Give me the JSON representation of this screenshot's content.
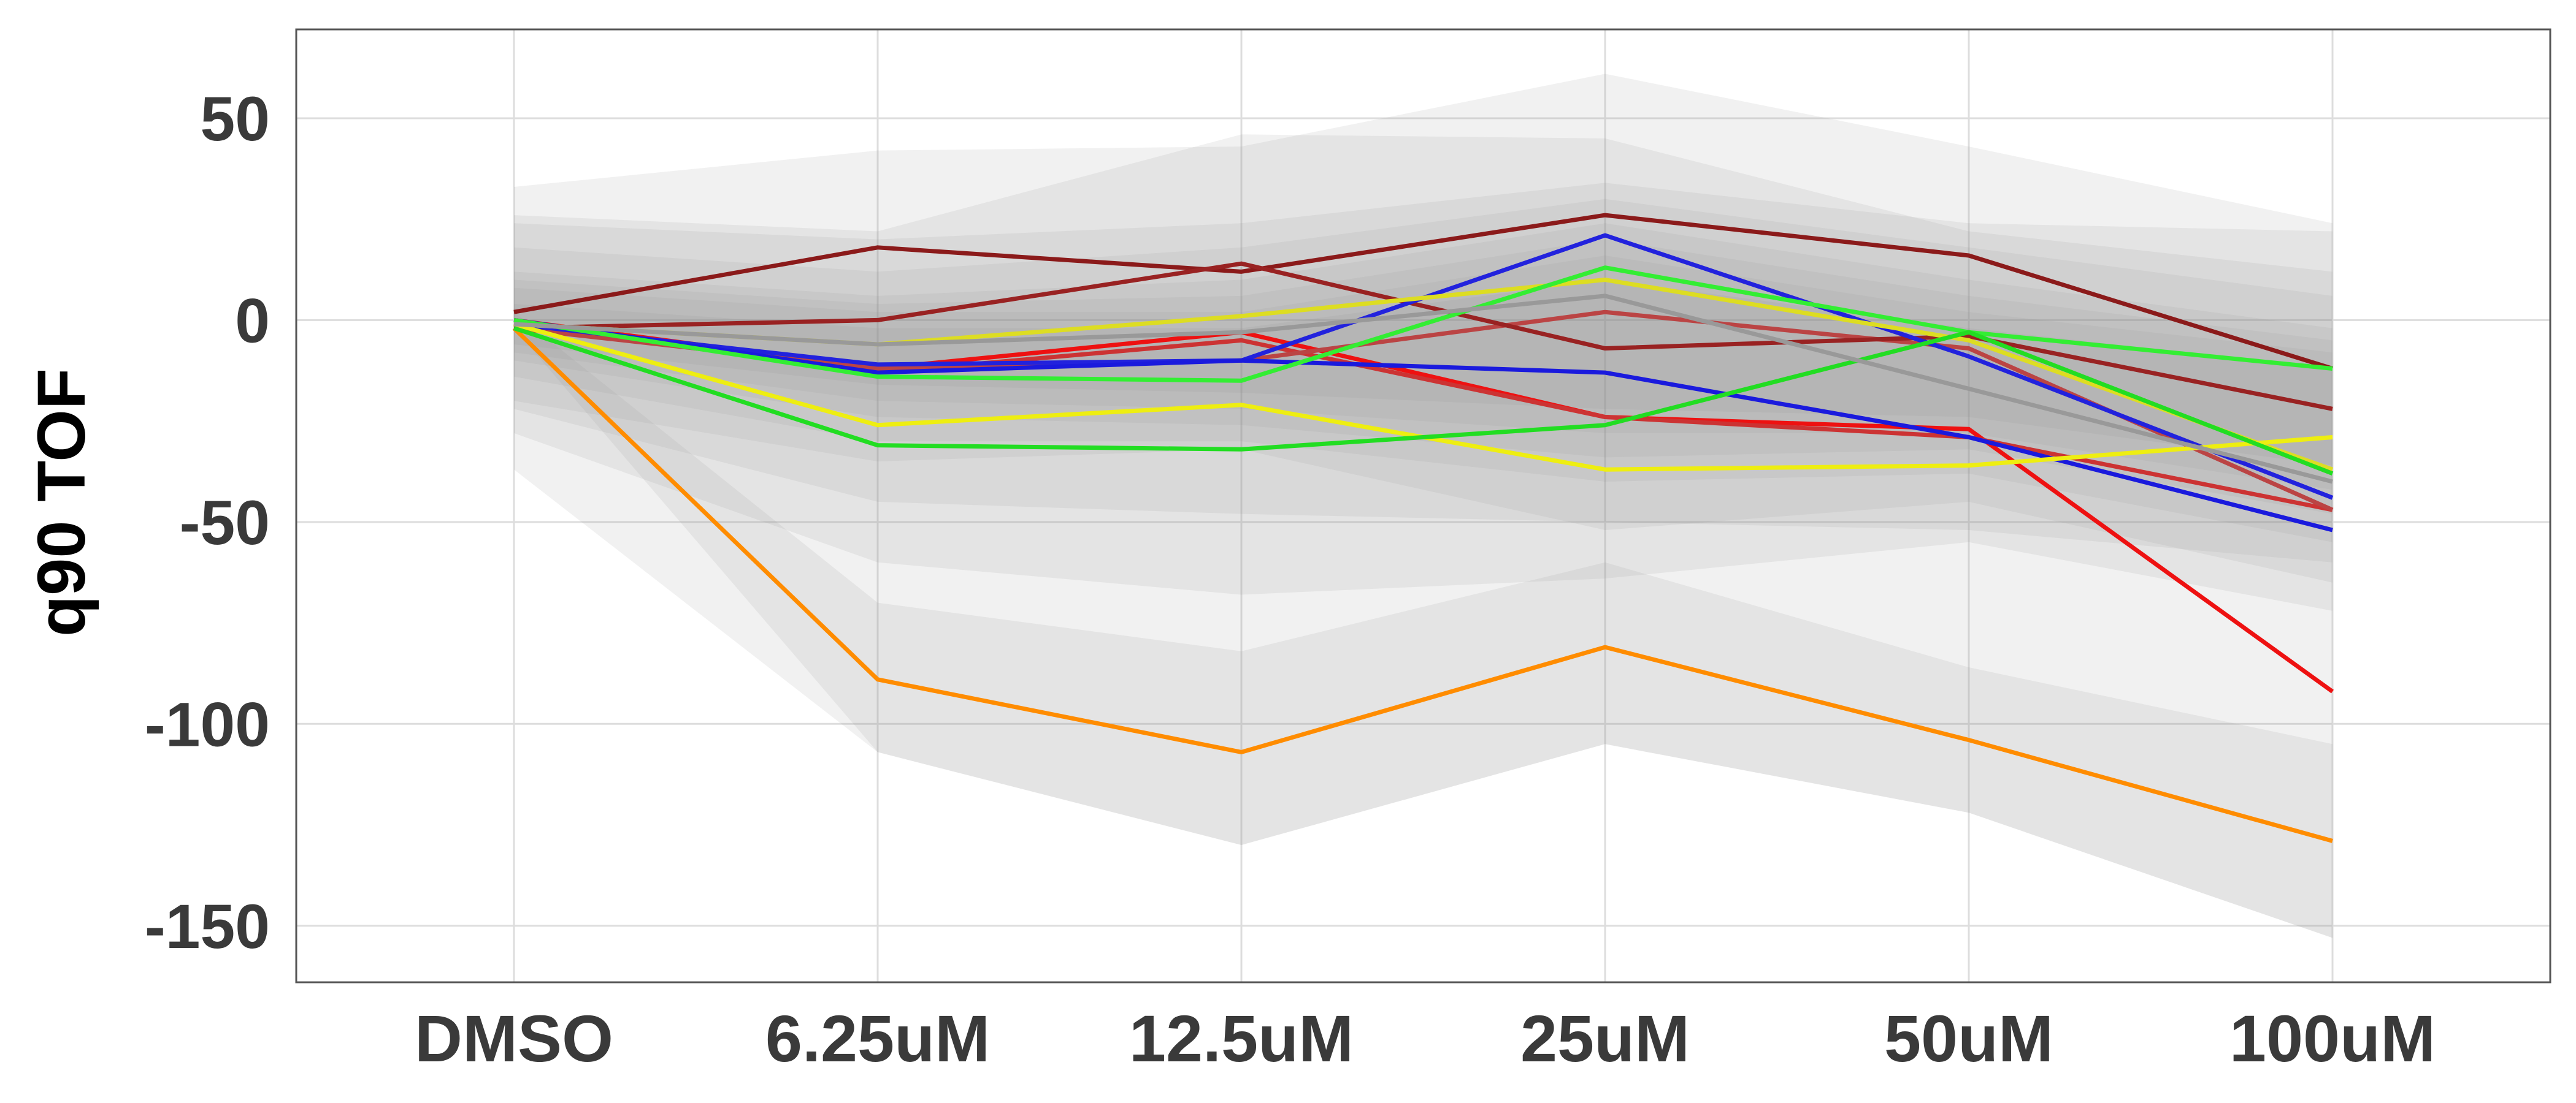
{
  "chart_data": {
    "type": "line",
    "xlabel": "",
    "ylabel": "q90 TOF",
    "categories": [
      "DMSO",
      "6.25uM",
      "12.5uM",
      "25uM",
      "50uM",
      "100uM"
    ],
    "ylim": [
      -164,
      72
    ],
    "yticks": [
      50,
      0,
      -50,
      -100,
      -150
    ],
    "ytick_labels": [
      "50",
      "0",
      "-50",
      "-100",
      "-150"
    ],
    "grid": true,
    "legend": "none",
    "ribbons": [
      {
        "upper": [
          33,
          42,
          43,
          61,
          43,
          24
        ],
        "lower": [
          -37,
          -107,
          -130,
          -105,
          -122,
          -153
        ]
      },
      {
        "upper": [
          26,
          22,
          46,
          45,
          22,
          12
        ],
        "lower": [
          -28,
          -60,
          -68,
          -64,
          -55,
          -72
        ]
      },
      {
        "upper": [
          24,
          20,
          24,
          34,
          24,
          22
        ],
        "lower": [
          -22,
          -45,
          -48,
          -50,
          -52,
          -60
        ]
      },
      {
        "upper": [
          18,
          12,
          18,
          30,
          18,
          6
        ],
        "lower": [
          -20,
          -35,
          -32,
          -52,
          -45,
          -65
        ]
      },
      {
        "upper": [
          12,
          6,
          10,
          24,
          10,
          -2
        ],
        "lower": [
          -14,
          -30,
          -30,
          -40,
          -38,
          -55
        ]
      },
      {
        "upper": [
          10,
          4,
          6,
          20,
          6,
          -5
        ],
        "lower": [
          -10,
          -24,
          -26,
          -34,
          -32,
          -48
        ]
      },
      {
        "upper": [
          8,
          2,
          2,
          16,
          2,
          -8
        ],
        "lower": [
          -8,
          -20,
          -22,
          -28,
          -28,
          -42
        ]
      },
      {
        "upper": [
          4,
          -2,
          -2,
          10,
          -2,
          -12
        ],
        "lower": [
          -6,
          -16,
          -18,
          -22,
          -24,
          -36
        ]
      },
      {
        "upper": [
          2,
          -70,
          -82,
          -60,
          -86,
          -105
        ],
        "lower": [
          -2,
          -107,
          -130,
          -105,
          -122,
          -153
        ]
      }
    ],
    "series": [
      {
        "color": "#ff8c00",
        "values": [
          -2,
          -89,
          -107,
          -81,
          -104,
          -129
        ]
      },
      {
        "color": "#ee1111",
        "values": [
          0,
          -12,
          -3,
          -24,
          -27,
          -92
        ]
      },
      {
        "color": "#cc3333",
        "values": [
          -1,
          -13,
          -5,
          -24,
          -29,
          -47
        ]
      },
      {
        "color": "#bb4444",
        "values": [
          -2,
          -12,
          -10,
          2,
          -7,
          -47
        ]
      },
      {
        "color": "#8b1a1a",
        "values": [
          2,
          18,
          12,
          26,
          16,
          -12
        ]
      },
      {
        "color": "#992222",
        "values": [
          -2,
          0,
          14,
          -7,
          -4,
          -22
        ]
      },
      {
        "color": "#2222dd",
        "values": [
          -1,
          -11,
          -10,
          21,
          -9,
          -44
        ]
      },
      {
        "color": "#1a1add",
        "values": [
          0,
          -13,
          -10,
          -13,
          -29,
          -52
        ]
      },
      {
        "color": "#dddd22",
        "values": [
          -1,
          -6,
          1,
          10,
          -5,
          -37
        ]
      },
      {
        "color": "#eeee11",
        "values": [
          -1,
          -26,
          -21,
          -37,
          -36,
          -29
        ]
      },
      {
        "color": "#33ee33",
        "values": [
          0,
          -14,
          -15,
          13,
          -3,
          -12
        ]
      },
      {
        "color": "#22dd22",
        "values": [
          -2,
          -31,
          -32,
          -26,
          -3,
          -38
        ]
      },
      {
        "color": "#999999",
        "values": [
          -1,
          -6,
          -3,
          6,
          -17,
          -40
        ]
      }
    ]
  }
}
